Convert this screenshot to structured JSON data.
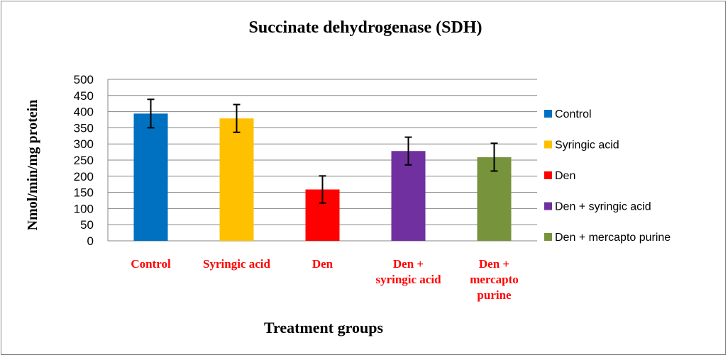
{
  "chart_data": {
    "type": "bar",
    "title": "Succinate dehydrogenase (SDH)",
    "xlabel": "Treatment groups",
    "ylabel": "Nmol/min/mg protein",
    "ylim": [
      0,
      500
    ],
    "yticks": [
      0,
      50,
      100,
      150,
      200,
      250,
      300,
      350,
      400,
      450,
      500
    ],
    "grid": true,
    "legend_position": "right",
    "categories": [
      [
        "Control"
      ],
      [
        "Syringic acid"
      ],
      [
        "Den"
      ],
      [
        "Den +",
        "syringic acid"
      ],
      [
        "Den +",
        "mercapto",
        "purine"
      ]
    ],
    "series": [
      {
        "name": "Control",
        "value": 394,
        "error": 44,
        "color": "#0070C0"
      },
      {
        "name": "Syringic acid",
        "value": 379,
        "error": 43,
        "color": "#FFC000"
      },
      {
        "name": "Den",
        "value": 159,
        "error": 42,
        "color": "#FF0000"
      },
      {
        "name": "Den + syringic acid",
        "value": 278,
        "error": 43,
        "color": "#7030A0"
      },
      {
        "name": "Den + mercapto purine",
        "value": 259,
        "error": 43,
        "color": "#77933C"
      }
    ],
    "category_label_color": "#FF0000"
  }
}
